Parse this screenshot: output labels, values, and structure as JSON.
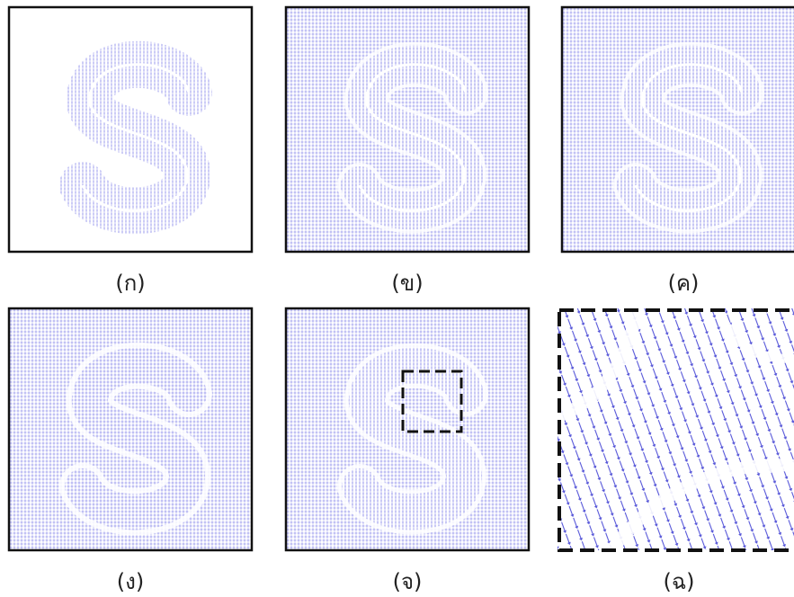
{
  "panels": [
    {
      "label": "(ก)"
    },
    {
      "label": "(ข)"
    },
    {
      "label": "(ค)"
    },
    {
      "label": "(ง)"
    },
    {
      "label": "(จ)"
    },
    {
      "label": "(ฉ)"
    }
  ]
}
